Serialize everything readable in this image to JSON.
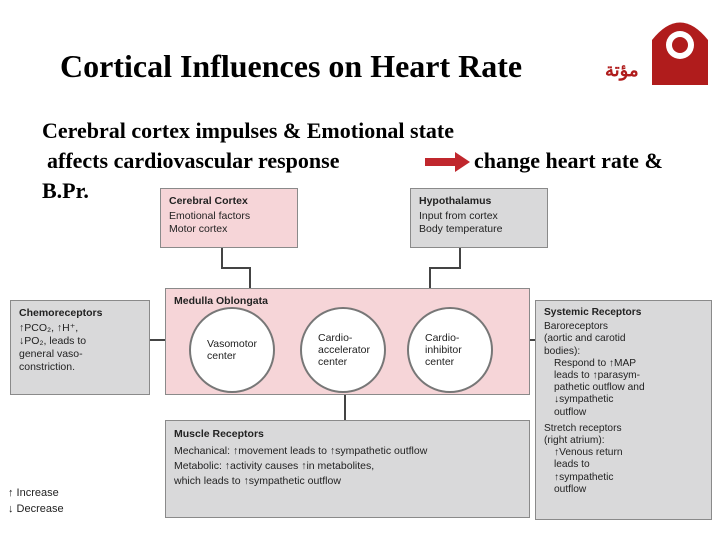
{
  "title": "Cortical Influences on Heart Rate",
  "logo_text": "مؤتة",
  "intro": {
    "line1": "Cerebral cortex impulses & Emotional state",
    "line2": "affects cardiovascular response",
    "line3": "change heart rate &",
    "line4": "B.Pr."
  },
  "diagram": {
    "cerebral_cortex": {
      "title": "Cerebral Cortex",
      "items": [
        "Emotional factors",
        "Motor cortex"
      ]
    },
    "hypothalamus": {
      "title": "Hypothalamus",
      "items": [
        "Input from cortex",
        "Body temperature"
      ]
    },
    "medulla": {
      "title": "Medulla Oblongata",
      "centers": [
        [
          "Vasomotor",
          "center"
        ],
        [
          "Cardio-",
          "accelerator",
          "center"
        ],
        [
          "Cardio-",
          "inhibitor",
          "center"
        ]
      ]
    },
    "chemoreceptors": {
      "title": "Chemoreceptors",
      "items": [
        "↑PCO₂, ↑H⁺,",
        "↓PO₂, leads to",
        "general vaso-",
        "constriction."
      ]
    },
    "systemic_receptors": {
      "title": "Systemic Receptors",
      "items": [
        "Baroreceptors",
        "(aortic and carotid",
        "bodies):",
        "Respond to ↑MAP",
        "leads to ↑parasym-",
        "pathetic outflow and",
        "↓sympathetic",
        "outflow",
        "Stretch receptors",
        "(right atrium):",
        "↑Venous return",
        "leads to",
        "↑sympathetic",
        "outflow"
      ]
    },
    "muscle_receptors": {
      "title": "Muscle Receptors",
      "items": [
        "Mechanical: ↑movement leads to ↑sympathetic outflow",
        "Metabolic: ↑activity causes ↑in metabolites,",
        "which leads to ↑sympathetic outflow"
      ]
    }
  },
  "legend": {
    "increase": "↑ Increase",
    "decrease": "↓ Decrease"
  }
}
